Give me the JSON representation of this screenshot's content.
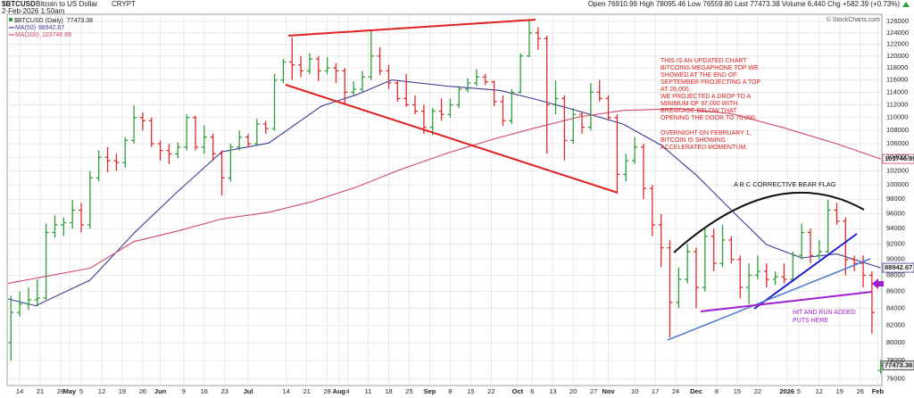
{
  "header": {
    "symbol": "$BTCUSD",
    "name": "Bitcoin to US Dollar",
    "exchange": "CRYPT",
    "datetime": "2-Feb-2026 1:50am",
    "quote": "Open 76910.99 High 78095.46 Low 76559.80 Last 77473.38 Volume 6,440 Chg +582.39 (+0.73%)",
    "copyright": "© StockCharts.com"
  },
  "chart_data": {
    "type": "candlestick",
    "title": "$BTCUSD (Daily)",
    "log": true,
    "grid": true,
    "up_color": "#2f9e3a",
    "down_color": "#e02b2b",
    "xlim": [
      -4.3,
      295
    ],
    "ylim": [
      75300,
      127300
    ],
    "xticks": [
      {
        "value": 0,
        "label": "14"
      },
      {
        "value": 7,
        "label": "21"
      },
      {
        "value": 14,
        "label": "28"
      },
      {
        "value": 17,
        "label": "May"
      },
      {
        "value": 21,
        "label": "5"
      },
      {
        "value": 28,
        "label": "12"
      },
      {
        "value": 35,
        "label": "19"
      },
      {
        "value": 42,
        "label": "26"
      },
      {
        "value": 48,
        "label": "Jun"
      },
      {
        "value": 56,
        "label": "9"
      },
      {
        "value": 63,
        "label": "16"
      },
      {
        "value": 70,
        "label": "23"
      },
      {
        "value": 78,
        "label": "Jul"
      },
      {
        "value": 91,
        "label": "14"
      },
      {
        "value": 98,
        "label": "21"
      },
      {
        "value": 105,
        "label": "28"
      },
      {
        "value": 109,
        "label": "Aug"
      },
      {
        "value": 112,
        "label": "4"
      },
      {
        "value": 119,
        "label": "11"
      },
      {
        "value": 126,
        "label": "18"
      },
      {
        "value": 133,
        "label": "25"
      },
      {
        "value": 140,
        "label": "Sep"
      },
      {
        "value": 147,
        "label": "8"
      },
      {
        "value": 154,
        "label": "15"
      },
      {
        "value": 161,
        "label": "22"
      },
      {
        "value": 170,
        "label": "Oct"
      },
      {
        "value": 175,
        "label": "6"
      },
      {
        "value": 182,
        "label": "13"
      },
      {
        "value": 189,
        "label": "20"
      },
      {
        "value": 196,
        "label": "27"
      },
      {
        "value": 201,
        "label": "Nov"
      },
      {
        "value": 210,
        "label": "10"
      },
      {
        "value": 217,
        "label": "17"
      },
      {
        "value": 224,
        "label": "24"
      },
      {
        "value": 231,
        "label": "Dec"
      },
      {
        "value": 238,
        "label": "8"
      },
      {
        "value": 245,
        "label": "15"
      },
      {
        "value": 252,
        "label": "22"
      },
      {
        "value": 262,
        "label": "2026"
      },
      {
        "value": 266,
        "label": "5"
      },
      {
        "value": 273,
        "label": "12"
      },
      {
        "value": 280,
        "label": "19"
      },
      {
        "value": 287,
        "label": "26"
      },
      {
        "value": 293,
        "label": "Feb"
      }
    ],
    "yticks": [
      76000,
      78000,
      80000,
      82000,
      84000,
      86000,
      88000,
      90000,
      92000,
      94000,
      96000,
      98000,
      100000,
      102000,
      104000,
      106000,
      108000,
      110000,
      112000,
      114000,
      116000,
      118000,
      120000,
      122000,
      124000,
      126000
    ],
    "x": [
      -3,
      0,
      3,
      6,
      9,
      12,
      15,
      18,
      21,
      24,
      27,
      30,
      33,
      36,
      39,
      42,
      45,
      48,
      51,
      54,
      57,
      60,
      63,
      66,
      69,
      72,
      75,
      78,
      81,
      84,
      87,
      90,
      93,
      96,
      99,
      102,
      105,
      108,
      111,
      114,
      117,
      120,
      123,
      126,
      129,
      132,
      135,
      138,
      141,
      144,
      147,
      150,
      153,
      156,
      159,
      162,
      165,
      168,
      171,
      174,
      177,
      180,
      183,
      186,
      189,
      192,
      195,
      198,
      201,
      204,
      207,
      210,
      213,
      216,
      219,
      222,
      225,
      228,
      231,
      234,
      237,
      240,
      243,
      246,
      249,
      252,
      255,
      258,
      261,
      264,
      267,
      270,
      273,
      276,
      279,
      282,
      285,
      288,
      291,
      294
    ],
    "open": [
      80000,
      83500,
      84500,
      85000,
      85200,
      93500,
      94500,
      94800,
      96500,
      94500,
      101000,
      104000,
      103500,
      103200,
      106500,
      110000,
      109500,
      106000,
      105000,
      104500,
      105500,
      110000,
      105500,
      107000,
      104500,
      101000,
      105500,
      107000,
      106000,
      109000,
      108300,
      116000,
      119000,
      118500,
      117500,
      119500,
      117500,
      118000,
      117500,
      114000,
      114500,
      116500,
      120000,
      117500,
      115500,
      113000,
      112000,
      111000,
      108500,
      111000,
      110500,
      112000,
      114500,
      115500,
      116500,
      115700,
      112500,
      109500,
      114000,
      120000,
      124000,
      123000,
      112000,
      113000,
      106500,
      110500,
      108500,
      114000,
      113000,
      110000,
      101500,
      103500,
      105500,
      99500,
      94500,
      91500,
      84700,
      87500,
      91000,
      86500,
      93000,
      89500,
      92500,
      90000,
      86500,
      88000,
      88500,
      87500,
      87800,
      87500,
      90500,
      93500,
      90500,
      91000,
      96500,
      95000,
      90000,
      89500,
      88000,
      76910.99
    ],
    "high": [
      85500,
      86000,
      86500,
      87500,
      94700,
      95800,
      95500,
      97900,
      97500,
      102000,
      105000,
      105500,
      104500,
      107000,
      111900,
      110800,
      110000,
      106500,
      106000,
      106200,
      110500,
      110300,
      108800,
      107500,
      105000,
      106000,
      108000,
      107500,
      109800,
      109500,
      117000,
      119500,
      123200,
      120000,
      120500,
      120000,
      119800,
      118800,
      118000,
      115800,
      117500,
      124400,
      121500,
      118500,
      116000,
      117000,
      113500,
      112000,
      111500,
      113000,
      113000,
      115000,
      116300,
      117800,
      117000,
      115900,
      113500,
      114500,
      120500,
      126200,
      125000,
      123500,
      115900,
      113500,
      111500,
      111000,
      115500,
      116000,
      113500,
      110500,
      104500,
      107000,
      106000,
      100000,
      96000,
      92500,
      89000,
      92000,
      91500,
      94000,
      94000,
      94500,
      93000,
      90500,
      89500,
      90500,
      89500,
      88500,
      89500,
      91000,
      94700,
      94000,
      92500,
      97900,
      97500,
      95500,
      90500,
      90500,
      88500,
      78095.46
    ],
    "low": [
      78000,
      83000,
      83800,
      84200,
      85000,
      92800,
      93000,
      94000,
      93500,
      94000,
      100500,
      101800,
      102000,
      102500,
      106000,
      108000,
      105500,
      103500,
      103000,
      103800,
      105000,
      105000,
      104500,
      103500,
      98500,
      100500,
      105000,
      105500,
      105800,
      107500,
      108000,
      115500,
      116000,
      116500,
      117000,
      115800,
      117000,
      115500,
      112000,
      113500,
      114000,
      116000,
      116800,
      114500,
      112500,
      111700,
      110500,
      107500,
      107300,
      109500,
      110000,
      111500,
      114000,
      115000,
      115200,
      111800,
      108700,
      109000,
      113800,
      119800,
      121000,
      104500,
      110500,
      103500,
      106000,
      107500,
      108000,
      112500,
      109500,
      99000,
      100500,
      103000,
      98000,
      93000,
      89000,
      80600,
      84000,
      87000,
      84000,
      86000,
      88500,
      89000,
      89500,
      85200,
      84500,
      87500,
      86500,
      86800,
      87000,
      87200,
      90000,
      89500,
      90000,
      90800,
      94500,
      88000,
      88500,
      86500,
      81000,
      76559.8
    ],
    "close": [
      83500,
      84500,
      85000,
      85200,
      93500,
      94500,
      94800,
      96500,
      94500,
      101000,
      104000,
      103500,
      103200,
      106500,
      110000,
      109500,
      106000,
      105000,
      104500,
      105500,
      110000,
      105500,
      107000,
      104500,
      101000,
      105500,
      107000,
      106000,
      109000,
      108300,
      116000,
      119000,
      118500,
      117500,
      119500,
      117500,
      118000,
      117500,
      114000,
      114500,
      116500,
      120000,
      117500,
      115500,
      113000,
      112000,
      111000,
      108500,
      111000,
      110500,
      112000,
      114500,
      115500,
      116500,
      115700,
      112500,
      109500,
      114000,
      120000,
      124000,
      123000,
      112000,
      113000,
      106500,
      110500,
      108500,
      114000,
      113000,
      110000,
      101500,
      103500,
      105500,
      99500,
      94500,
      91500,
      84700,
      87500,
      91000,
      86500,
      93000,
      89500,
      92500,
      90000,
      86500,
      88000,
      88500,
      87500,
      87800,
      87500,
      90500,
      93500,
      90500,
      91000,
      96500,
      95000,
      90000,
      89500,
      88000,
      83500,
      77473.38
    ],
    "overlays": [
      {
        "name": "MA(50)",
        "color": "#3a3a96",
        "x": [
          -4,
          5.5,
          24,
          39,
          54,
          69,
          85,
          103,
          115,
          127,
          146,
          164,
          176,
          191,
          206,
          219,
          231,
          243,
          255,
          267,
          279,
          294
        ],
        "values": [
          85100,
          84300,
          87400,
          93400,
          99100,
          104800,
          106100,
          111800,
          113600,
          116000,
          115000,
          114300,
          112900,
          111000,
          109000,
          105800,
          101400,
          96500,
          91900,
          90200,
          90700,
          88942.67
        ]
      },
      {
        "name": "MA(200)",
        "color": "#d2486a",
        "x": [
          -4,
          24,
          39,
          54,
          69,
          85,
          100,
          115,
          130,
          146,
          161,
          176,
          191,
          206,
          225,
          243,
          261,
          279,
          294
        ],
        "values": [
          87000,
          88900,
          92300,
          93700,
          95300,
          96200,
          97700,
          99700,
          102200,
          104600,
          106600,
          108400,
          110100,
          111100,
          111400,
          110600,
          108400,
          106000,
          103746.89
        ]
      }
    ],
    "annotations": {
      "note": [
        "THIS IS AN UPDATED CHART",
        "BITCOINS MEGAPHONE TOP WE",
        "SHOWED AT THE END OF",
        "SEPTEMBER PROJECTING A TOP",
        "AT 26,000.",
        "WE PROJECTED A DROP  TO A",
        "MINIMUM OF 97,000 WITH",
        "BREAKAGE BELOW THAT",
        "OPENING THE DOOR TO 70,000.",
        "OVERNIGHT ON FEBRUARY 1,",
        "BITCOIN IS SHOWING",
        "ACCELERATED MOMENTUM."
      ],
      "flag": "A B C CORRECTIVE BEAR FLAG",
      "puts": [
        "HIT AND RUN ADDED",
        "PUTS HERE"
      ]
    }
  }
}
